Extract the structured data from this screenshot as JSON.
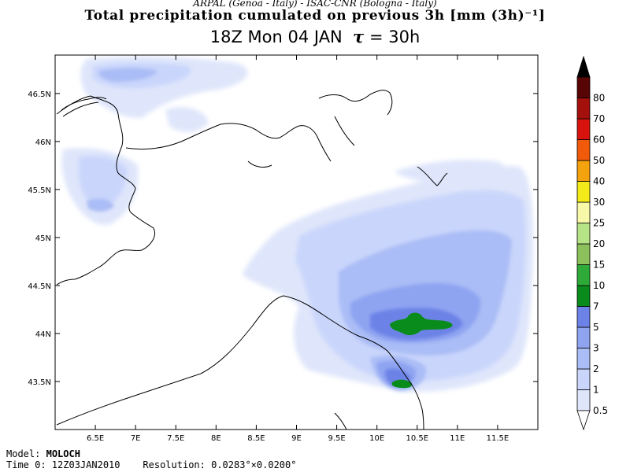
{
  "header": {
    "line1": "ARPAL (Genoa - Italy)  -  ISAC-CNR (Bologna - Italy)",
    "line2": "Total precipitation cumulated on previous 3h [mm (3h)⁻¹]",
    "line3_time": "18Z Mon 04 JAN",
    "line3_tau": "τ",
    "line3_lead": "= 30h"
  },
  "map": {
    "lon_range": [
      6.0,
      12.0
    ],
    "lat_range": [
      43.0,
      46.9
    ],
    "lon_ticks": [
      "6.5E",
      "7E",
      "7.5E",
      "8E",
      "8.5E",
      "9E",
      "9.5E",
      "10E",
      "10.5E",
      "11E",
      "11.5E"
    ],
    "lat_ticks": [
      "43.5N",
      "44N",
      "44.5N",
      "45N",
      "45.5N",
      "46N",
      "46.5N"
    ]
  },
  "colorbar": {
    "levels": [
      "0.5",
      "1",
      "2",
      "3",
      "5",
      "7",
      "10",
      "15",
      "20",
      "25",
      "30",
      "40",
      "50",
      "60",
      "70",
      "80"
    ],
    "colors": [
      "#dfe6fb",
      "#c9d5fb",
      "#abbdf6",
      "#8fa4f1",
      "#6c82e6",
      "#0a8c1d",
      "#2eaa38",
      "#8cc05a",
      "#b6e385",
      "#f7f9a8",
      "#f5ea19",
      "#f5a20f",
      "#f25a0b",
      "#d8120d",
      "#a4100c",
      "#5a0505"
    ]
  },
  "footer": {
    "model_label": "Model:",
    "model_name": "MOLOCH",
    "time0": "Time 0: 12Z03JAN2010",
    "resolution": "Resolution: 0.0283°×0.0200°"
  }
}
